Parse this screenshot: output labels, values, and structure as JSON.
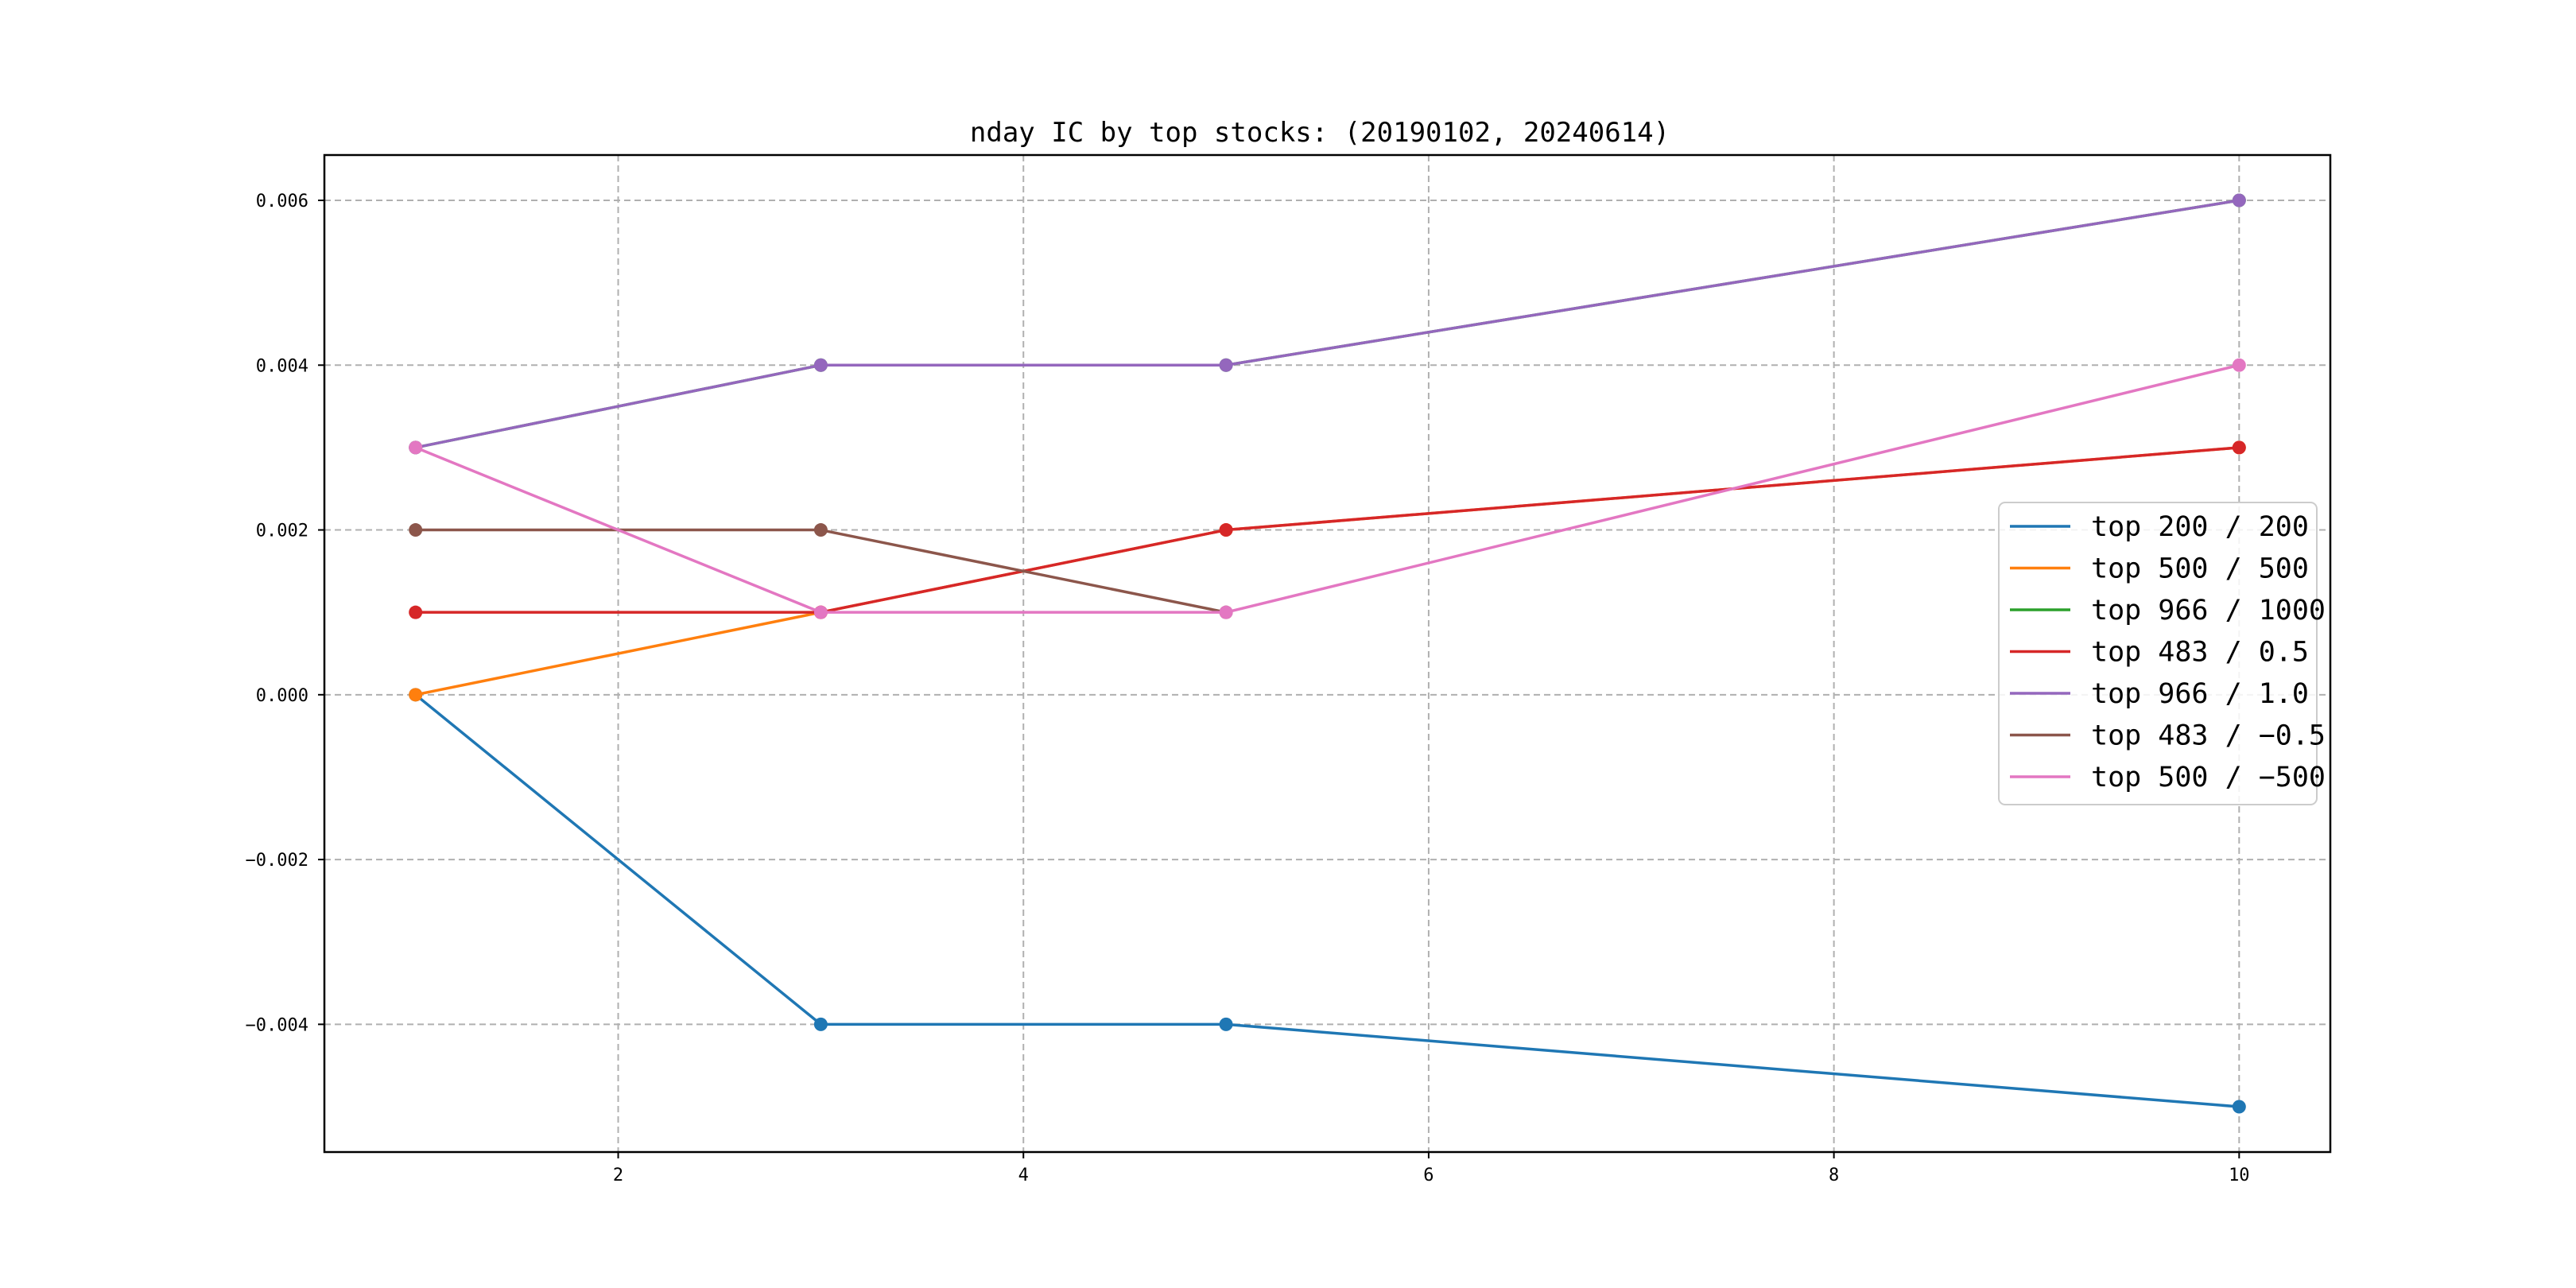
{
  "chart_data": {
    "type": "line",
    "title": "nday IC by top stocks: (20190102, 20240614)",
    "xlabel": "",
    "ylabel": "",
    "x": [
      1,
      3,
      5,
      10
    ],
    "xlim": [
      0.55,
      10.45
    ],
    "ylim": [
      -0.00555,
      0.00655
    ],
    "xticks": [
      2,
      4,
      6,
      8,
      10
    ],
    "xtick_labels": [
      "2",
      "4",
      "6",
      "8",
      "10"
    ],
    "yticks": [
      -0.004,
      -0.002,
      0.0,
      0.002,
      0.004,
      0.006
    ],
    "ytick_labels": [
      "−0.004",
      "−0.002",
      "0.000",
      "0.002",
      "0.004",
      "0.006"
    ],
    "grid": true,
    "legend_position": "center-right",
    "series": [
      {
        "name": "top 200 / 200",
        "color": "#1f77b4",
        "values": [
          0.0,
          -0.004,
          -0.004,
          -0.005
        ]
      },
      {
        "name": "top 500 / 500",
        "color": "#ff7f0e",
        "values": [
          0.0,
          0.001,
          0.002,
          0.003
        ]
      },
      {
        "name": "top 966 / 1000",
        "color": "#2ca02c",
        "values": [
          0.003,
          0.004,
          0.004,
          0.006
        ]
      },
      {
        "name": "top 483 / 0.5",
        "color": "#d62728",
        "values": [
          0.001,
          0.001,
          0.002,
          0.003
        ]
      },
      {
        "name": "top 966 / 1.0",
        "color": "#9467bd",
        "values": [
          0.003,
          0.004,
          0.004,
          0.006
        ]
      },
      {
        "name": "top 483 / −0.5",
        "color": "#8c564b",
        "values": [
          0.002,
          0.002,
          0.001,
          null
        ]
      },
      {
        "name": "top 500 / −500",
        "color": "#e377c2",
        "values": [
          0.003,
          0.001,
          0.001,
          0.004
        ]
      }
    ]
  }
}
